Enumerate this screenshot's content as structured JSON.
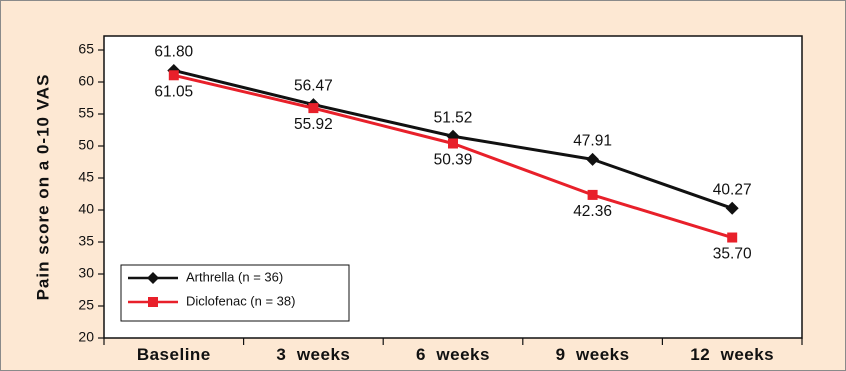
{
  "chart_data": {
    "type": "line",
    "categories": [
      "Baseline",
      "3  weeks",
      "6  weeks",
      "9  weeks",
      "12  weeks"
    ],
    "ylabel": "Pain score on a 0-10 VAS",
    "ylim": [
      20,
      65
    ],
    "yticks": [
      20,
      25,
      30,
      35,
      40,
      45,
      50,
      55,
      60,
      65
    ],
    "grid": false,
    "legend_position": "bottom-left",
    "series": [
      {
        "name": "Arthrella (n = 36)",
        "values": [
          61.8,
          56.47,
          51.52,
          47.91,
          40.27
        ],
        "labels": [
          "61.80",
          "56.47",
          "51.52",
          "47.91",
          "40.27"
        ],
        "color": "#111111",
        "marker": "diamond"
      },
      {
        "name": "Diclofenac (n = 38)",
        "values": [
          61.05,
          55.92,
          50.39,
          42.36,
          35.7
        ],
        "labels": [
          "61.05",
          "55.92",
          "50.39",
          "42.36",
          "35.70"
        ],
        "color": "#e8202a",
        "marker": "square"
      }
    ]
  }
}
